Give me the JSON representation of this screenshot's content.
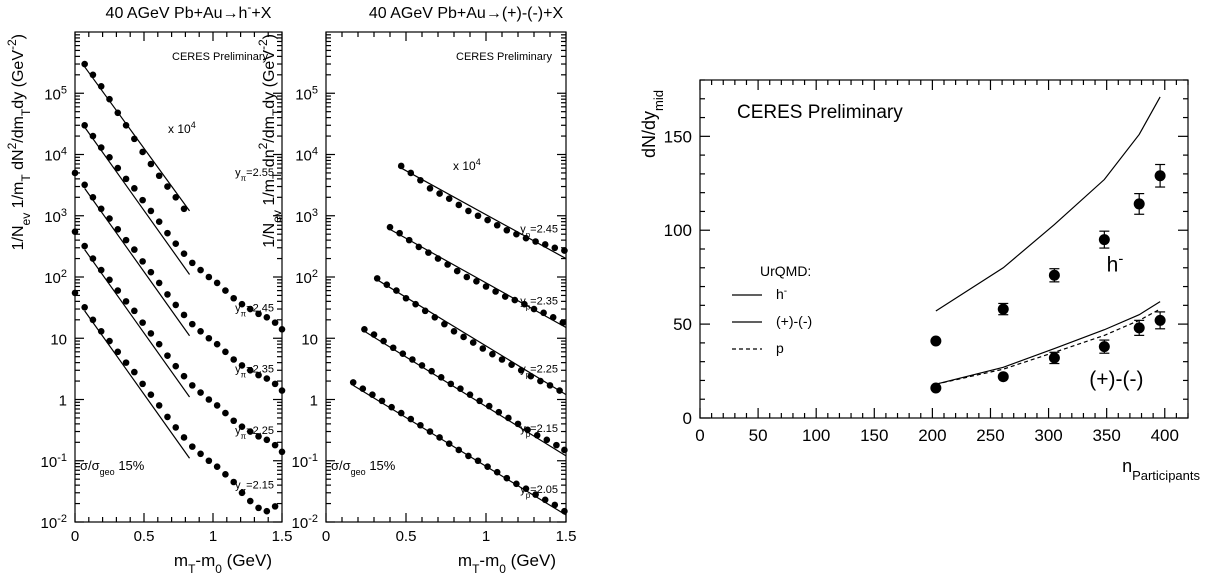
{
  "colors": {
    "marker": "#000000",
    "axis": "#000000",
    "background": "#ffffff"
  },
  "chart_data": [
    {
      "type": "scatter",
      "title": "40 AGeV Pb+Au→h⁻+X",
      "xlabel": "mₜ-m₀ (GeV)",
      "ylabel": "1/Nₑᵥ 1/mₜ dN²/dmₜdy (GeV⁻²)",
      "ylabel_parts": {
        "pre": "1/N",
        "sub1": "ev",
        "mid1": " 1/m",
        "sub2": "T",
        "mid2": " dN",
        "sup1": "2",
        "mid3": "/dm",
        "sub3": "T",
        "mid4": "dy (GeV",
        "sup2": "-2",
        "post": ")"
      },
      "xlabel_parts": {
        "pre": "m",
        "sub1": "T",
        "mid": "-m",
        "sub2": "0",
        "post": " (GeV)"
      },
      "title_parts": {
        "pre": "40 AGeV Pb+Au→h",
        "sup": "-",
        "post": "+X"
      },
      "xlim": [
        0,
        1.5
      ],
      "ylim": [
        0.01,
        1000000
      ],
      "log_y": true,
      "xticks": [
        "0",
        "0.5",
        "1",
        "1.5"
      ],
      "yticks": [
        {
          "mant": "10",
          "exp": "-2",
          "value": 0.01
        },
        {
          "mant": "10",
          "exp": "-1",
          "value": 0.1
        },
        {
          "mant": "1",
          "exp": "",
          "value": 1
        },
        {
          "mant": "10",
          "exp": "",
          "value": 10
        },
        {
          "mant": "10",
          "exp": "2",
          "value": 100
        },
        {
          "mant": "10",
          "exp": "3",
          "value": 1000
        },
        {
          "mant": "10",
          "exp": "4",
          "value": 10000
        },
        {
          "mant": "10",
          "exp": "5",
          "value": 100000
        }
      ],
      "preliminary": "CERES Preliminary",
      "scale_note": {
        "pre": "x 10",
        "sup": "4"
      },
      "centrality": {
        "pre": "σ/σ",
        "sub": "geo",
        "post": " 15%"
      },
      "series": [
        {
          "label": {
            "pre": "y",
            "sub": "π",
            "post": "=2.55"
          },
          "x": [
            0.07,
            0.13,
            0.19,
            0.25,
            0.31,
            0.37,
            0.43,
            0.49,
            0.55,
            0.61,
            0.67,
            0.73,
            0.79
          ],
          "y": [
            300000,
            200000,
            130000,
            80000,
            48000,
            30000,
            18000,
            11000,
            7000,
            4500,
            3000,
            2000,
            1300
          ],
          "fit": [
            [
              0.07,
              270000
            ],
            [
              0.83,
              1200
            ]
          ]
        },
        {
          "label": {
            "pre": "y",
            "sub": "π",
            "post": "=2.45"
          },
          "x": [
            0.07,
            0.13,
            0.19,
            0.25,
            0.31,
            0.37,
            0.43,
            0.49,
            0.55,
            0.61,
            0.67,
            0.73,
            0.79,
            0.85,
            0.91,
            0.97,
            1.03,
            1.09,
            1.15,
            1.21,
            1.27,
            1.33,
            1.39,
            1.45,
            1.5
          ],
          "y": [
            30000,
            20000,
            13000,
            9000,
            6000,
            4000,
            2800,
            1800,
            1200,
            800,
            520,
            350,
            240,
            170,
            130,
            100,
            80,
            60,
            45,
            36,
            30,
            25,
            22,
            18,
            14
          ],
          "fit": [
            [
              0.07,
              28000
            ],
            [
              0.83,
              110
            ]
          ]
        },
        {
          "label": {
            "pre": "y",
            "sub": "π",
            "post": "=2.35"
          },
          "x": [
            0,
            0.07,
            0.13,
            0.19,
            0.25,
            0.31,
            0.37,
            0.43,
            0.49,
            0.55,
            0.61,
            0.67,
            0.73,
            0.79,
            0.85,
            0.91,
            0.97,
            1.03,
            1.09,
            1.15,
            1.21,
            1.27,
            1.33,
            1.39,
            1.45,
            1.5
          ],
          "y": [
            5000,
            3200,
            2000,
            1300,
            900,
            600,
            400,
            280,
            180,
            120,
            80,
            52,
            35,
            24,
            17,
            13,
            10,
            8,
            6,
            4.5,
            3.6,
            3,
            2.5,
            2.2,
            1.8,
            1.4
          ],
          "fit": [
            [
              0.07,
              2800
            ],
            [
              0.83,
              11
            ]
          ]
        },
        {
          "label": {
            "pre": "y",
            "sub": "π",
            "post": "=2.25"
          },
          "x": [
            0,
            0.07,
            0.13,
            0.19,
            0.25,
            0.31,
            0.37,
            0.43,
            0.49,
            0.55,
            0.61,
            0.67,
            0.73,
            0.79,
            0.85,
            0.91,
            0.97,
            1.03,
            1.09,
            1.15,
            1.21,
            1.27,
            1.33,
            1.39,
            1.45,
            1.5
          ],
          "y": [
            550,
            320,
            200,
            130,
            90,
            60,
            40,
            28,
            18,
            12,
            8,
            5.2,
            3.5,
            2.4,
            1.7,
            1.3,
            1,
            0.8,
            0.6,
            0.45,
            0.36,
            0.3,
            0.25,
            0.22,
            0.18,
            0.14
          ],
          "fit": [
            [
              0.07,
              280
            ],
            [
              0.83,
              1.1
            ]
          ]
        },
        {
          "label": {
            "pre": "y",
            "sub": "π",
            "post": "=2.15"
          },
          "x": [
            0,
            0.07,
            0.13,
            0.19,
            0.25,
            0.31,
            0.37,
            0.43,
            0.49,
            0.55,
            0.61,
            0.67,
            0.73,
            0.79,
            0.85,
            0.91,
            0.97,
            1.03,
            1.09,
            1.15,
            1.21,
            1.27,
            1.33,
            1.39,
            1.45
          ],
          "y": [
            55,
            32,
            20,
            13,
            9,
            6,
            4,
            2.8,
            1.8,
            1.2,
            0.8,
            0.52,
            0.35,
            0.24,
            0.17,
            0.13,
            0.1,
            0.08,
            0.06,
            0.045,
            0.03,
            0.022,
            0.017,
            0.015,
            0.018
          ],
          "fit": [
            [
              0.07,
              28
            ],
            [
              0.83,
              0.11
            ]
          ]
        }
      ]
    },
    {
      "type": "scatter",
      "title": "40 AGeV Pb+Au→(+)-(-)+X",
      "title_parts": {
        "pre": "40 AGeV Pb+Au→(+)-(-)+X",
        "sup": "",
        "post": ""
      },
      "xlabel": "mₜ-m₀ (GeV)",
      "ylabel": "1/Nₑᵥ 1/mₜ dN²/dmₜdy (GeV⁻²)",
      "ylabel_parts": {
        "pre": "1/N",
        "sub1": "ev",
        "mid1": " 1/m",
        "sub2": "T",
        "mid2": " dn",
        "sup1": "2",
        "mid3": "/dm",
        "sub3": "T",
        "mid4": "dy (GeV",
        "sup2": "-2",
        "post": ")"
      },
      "xlabel_parts": {
        "pre": "m",
        "sub1": "T",
        "mid": "-m",
        "sub2": "0",
        "post": " (GeV)"
      },
      "xlim": [
        0,
        1.5
      ],
      "ylim": [
        0.01,
        1000000
      ],
      "log_y": true,
      "xticks": [
        "0",
        "0.5",
        "1",
        "1.5"
      ],
      "yticks": [
        {
          "mant": "10",
          "exp": "-2",
          "value": 0.01
        },
        {
          "mant": "10",
          "exp": "-1",
          "value": 0.1
        },
        {
          "mant": "1",
          "exp": "",
          "value": 1
        },
        {
          "mant": "10",
          "exp": "",
          "value": 10
        },
        {
          "mant": "10",
          "exp": "2",
          "value": 100
        },
        {
          "mant": "10",
          "exp": "3",
          "value": 1000
        },
        {
          "mant": "10",
          "exp": "4",
          "value": 10000
        },
        {
          "mant": "10",
          "exp": "5",
          "value": 100000
        }
      ],
      "preliminary": "CERES Preliminary",
      "scale_note": {
        "pre": "x 10",
        "sup": "4"
      },
      "centrality": {
        "pre": "σ/σ",
        "sub": "geo",
        "post": " 15%"
      },
      "series": [
        {
          "label": {
            "pre": "y",
            "sub": "p",
            "post": "=2.45"
          },
          "x": [
            0.47,
            0.53,
            0.59,
            0.65,
            0.71,
            0.77,
            0.83,
            0.89,
            0.95,
            1.01,
            1.07,
            1.13,
            1.19,
            1.25,
            1.31,
            1.37,
            1.43,
            1.49
          ],
          "y": [
            6500,
            5000,
            3800,
            2800,
            2300,
            1900,
            1500,
            1200,
            1000,
            850,
            700,
            580,
            500,
            430,
            380,
            340,
            300,
            270
          ],
          "fit": [
            [
              0.47,
              6000
            ],
            [
              1.5,
              200
            ]
          ]
        },
        {
          "label": {
            "pre": "y",
            "sub": "p",
            "post": "=2.35"
          },
          "x": [
            0.4,
            0.46,
            0.52,
            0.58,
            0.64,
            0.7,
            0.76,
            0.82,
            0.88,
            0.94,
            1.0,
            1.06,
            1.12,
            1.18,
            1.24,
            1.3,
            1.36,
            1.42,
            1.48
          ],
          "y": [
            650,
            520,
            400,
            310,
            250,
            200,
            160,
            125,
            100,
            85,
            70,
            58,
            48,
            42,
            36,
            30,
            26,
            22,
            18
          ],
          "fit": [
            [
              0.4,
              600
            ],
            [
              1.5,
              15
            ]
          ]
        },
        {
          "label": {
            "pre": "y",
            "sub": "p",
            "post": "=2.25"
          },
          "x": [
            0.32,
            0.38,
            0.44,
            0.5,
            0.56,
            0.62,
            0.68,
            0.74,
            0.8,
            0.86,
            0.92,
            0.98,
            1.04,
            1.1,
            1.16,
            1.22,
            1.28,
            1.34,
            1.4,
            1.46
          ],
          "y": [
            95,
            75,
            60,
            45,
            36,
            28,
            22,
            17,
            13,
            10.5,
            8.5,
            6.8,
            5.5,
            4.5,
            3.7,
            3,
            2.4,
            2,
            1.7,
            1.4
          ],
          "fit": [
            [
              0.32,
              90
            ],
            [
              1.5,
              1.2
            ]
          ]
        },
        {
          "label": {
            "pre": "y",
            "sub": "p",
            "post": "=2.15"
          },
          "x": [
            0.24,
            0.3,
            0.36,
            0.42,
            0.48,
            0.54,
            0.6,
            0.66,
            0.72,
            0.78,
            0.84,
            0.9,
            0.96,
            1.02,
            1.08,
            1.14,
            1.2,
            1.26,
            1.32,
            1.38,
            1.44,
            1.49
          ],
          "y": [
            14,
            11.5,
            9,
            7,
            5.6,
            4.5,
            3.6,
            2.9,
            2.3,
            1.8,
            1.5,
            1.2,
            0.95,
            0.78,
            0.62,
            0.5,
            0.4,
            0.32,
            0.26,
            0.22,
            0.18,
            0.15
          ],
          "fit": [
            [
              0.24,
              13
            ],
            [
              1.5,
              0.12
            ]
          ]
        },
        {
          "label": {
            "pre": "y",
            "sub": "p",
            "post": "=2.05"
          },
          "x": [
            0.17,
            0.23,
            0.29,
            0.35,
            0.41,
            0.47,
            0.53,
            0.59,
            0.65,
            0.71,
            0.77,
            0.83,
            0.89,
            0.95,
            1.01,
            1.07,
            1.13,
            1.19,
            1.25,
            1.31,
            1.37,
            1.43,
            1.49
          ],
          "y": [
            1.9,
            1.5,
            1.2,
            0.95,
            0.75,
            0.6,
            0.48,
            0.38,
            0.3,
            0.24,
            0.19,
            0.15,
            0.12,
            0.1,
            0.08,
            0.065,
            0.052,
            0.042,
            0.035,
            0.028,
            0.023,
            0.019,
            0.015
          ],
          "fit": [
            [
              0.17,
              1.7
            ],
            [
              1.5,
              0.013
            ]
          ]
        }
      ]
    },
    {
      "type": "scatter",
      "ylabel": "dN/dy_mid",
      "ylabel_parts": {
        "pre": "dN/dy",
        "sub": "mid"
      },
      "xlabel": "n_Participants",
      "xlabel_parts": {
        "pre": "n",
        "sub": "Participants"
      },
      "preliminary": "CERES Preliminary",
      "xlim": [
        0,
        420
      ],
      "ylim": [
        0,
        180
      ],
      "xticks": [
        0,
        50,
        100,
        150,
        200,
        250,
        300,
        350,
        400
      ],
      "yticks": [
        0,
        50,
        100,
        150
      ],
      "legend_title": "UrQMD:",
      "legend": [
        {
          "label": "h",
          "sup": "-",
          "dash": ""
        },
        {
          "label": "(+)-(-)",
          "sup": "",
          "dash": ""
        },
        {
          "label": "p",
          "sup": "",
          "dash": "4 3"
        }
      ],
      "annotations": [
        {
          "text": "h",
          "sup": "-",
          "x": 350,
          "y": 78
        },
        {
          "text": "(+)-(-)",
          "sup": "",
          "x": 335,
          "y": 17
        }
      ],
      "series": [
        {
          "name": "h-",
          "x": [
            203,
            261,
            305,
            348,
            378,
            396
          ],
          "y": [
            41,
            58,
            76,
            95,
            114,
            129
          ],
          "yerr": [
            0,
            3,
            3.5,
            4.5,
            5.5,
            6
          ]
        },
        {
          "name": "(+)-(-)",
          "x": [
            203,
            261,
            305,
            348,
            378,
            396
          ],
          "y": [
            16,
            22,
            32,
            38,
            48,
            52
          ],
          "yerr": [
            0,
            0,
            3,
            3.5,
            4,
            4.5
          ]
        }
      ],
      "model_lines": [
        {
          "name": "h-",
          "dash": "",
          "x": [
            203,
            261,
            305,
            348,
            378,
            396
          ],
          "y": [
            57,
            80,
            103,
            127,
            151,
            171
          ]
        },
        {
          "name": "(+)-(-)",
          "dash": "",
          "x": [
            203,
            261,
            305,
            348,
            378,
            396
          ],
          "y": [
            18,
            27,
            37,
            47,
            55,
            62
          ]
        },
        {
          "name": "p",
          "dash": "4 3",
          "x": [
            203,
            261,
            305,
            348,
            378,
            396
          ],
          "y": [
            18,
            26,
            35,
            44,
            52,
            58
          ]
        }
      ]
    }
  ]
}
